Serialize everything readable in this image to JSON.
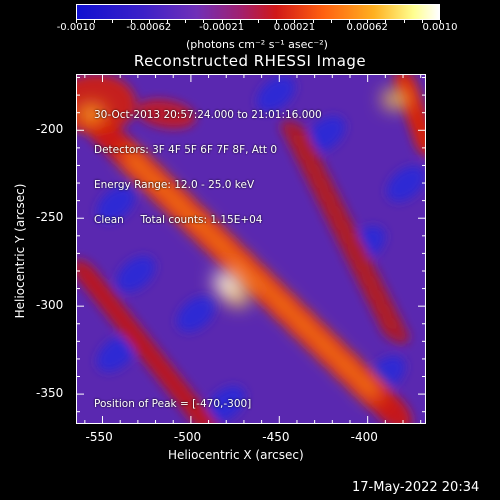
{
  "colorbar": {
    "tick_labels": [
      "-0.0010",
      "-0.00062",
      "-0.00021",
      "0.00021",
      "0.00062",
      "0.0010"
    ],
    "units": "(photons cm⁻² s⁻¹ asec⁻²)"
  },
  "chart_data": {
    "type": "heatmap",
    "title": "Reconstructed RHESSI Image",
    "xlabel": "Heliocentric X (arcsec)",
    "ylabel": "Heliocentric Y (arcsec)",
    "xlim": [
      -565,
      -367
    ],
    "ylim": [
      -367,
      -168
    ],
    "x_ticks": [
      -550,
      -500,
      -450,
      -400
    ],
    "y_ticks": [
      -200,
      -250,
      -300,
      -350
    ],
    "x_tick_labels": [
      "-550",
      "-500",
      "-450",
      "-400"
    ],
    "y_tick_labels": [
      "-200",
      "-250",
      "-300",
      "-350"
    ],
    "color_range": [
      -0.001,
      0.001
    ],
    "peak_position": [
      -470,
      -300
    ],
    "annotations": [
      "30-Oct-2013 20:57:24.000 to 21:01:16.000",
      "Detectors: 3F 4F 5F 6F 7F 8F, Att 0",
      "Energy Range: 12.0 - 25.0 keV",
      "Clean     Total counts: 1.15E+04"
    ],
    "peak_label": "Position of Peak = [-470,-300]"
  },
  "footer": {
    "timestamp": "17-May-2022 20:34"
  }
}
